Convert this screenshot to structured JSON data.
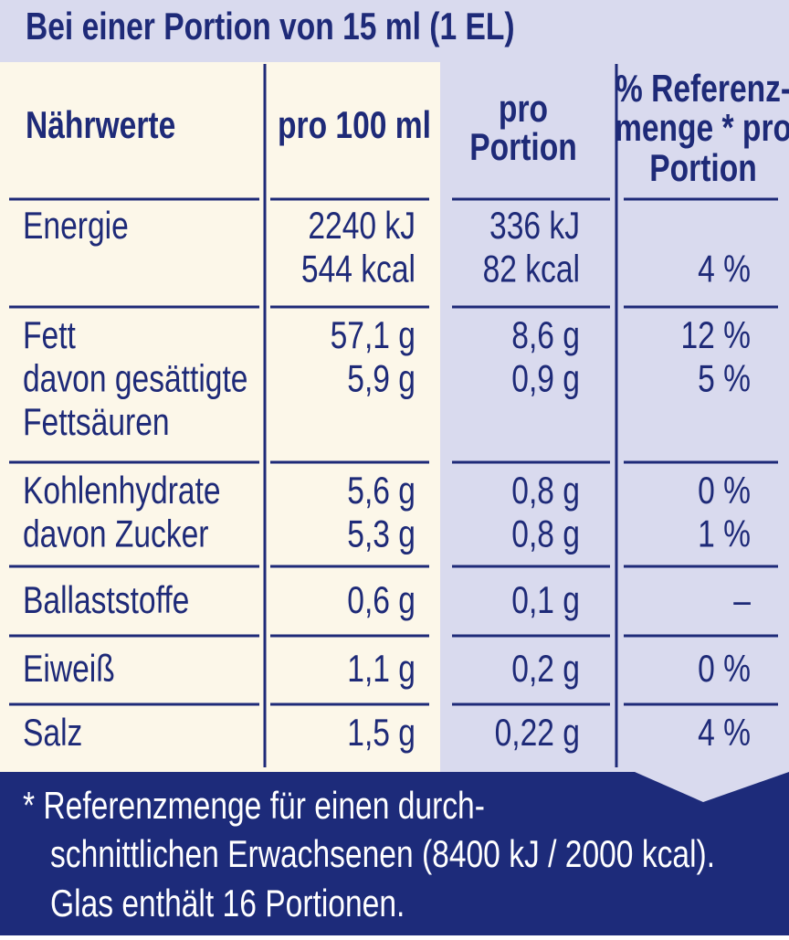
{
  "header": {
    "title": "Bei einer Portion von 15 ml (1 EL)"
  },
  "table": {
    "columns": [
      [
        "Nährwerte"
      ],
      [
        "pro 100 ml"
      ],
      [
        "pro",
        "Portion"
      ],
      [
        "% Referenz-",
        "menge * pro",
        "Portion"
      ]
    ],
    "rows": [
      {
        "cells": [
          [
            "Energie"
          ],
          [
            "2240 kJ",
            "544 kcal"
          ],
          [
            "336 kJ",
            "82 kcal"
          ],
          [
            null,
            "4 %"
          ]
        ]
      },
      {
        "cells": [
          [
            "Fett",
            "davon gesättigte",
            "Fettsäuren"
          ],
          [
            "57,1 g",
            "5,9 g"
          ],
          [
            "8,6 g",
            "0,9 g"
          ],
          [
            "12 %",
            "5 %"
          ]
        ]
      },
      {
        "cells": [
          [
            "Kohlenhydrate",
            "davon Zucker"
          ],
          [
            "5,6 g",
            "5,3 g"
          ],
          [
            "0,8 g",
            "0,8 g"
          ],
          [
            "0 %",
            "1 %"
          ]
        ]
      },
      {
        "cells": [
          [
            "Ballaststoffe"
          ],
          [
            "0,6 g"
          ],
          [
            "0,1 g"
          ],
          [
            "–"
          ]
        ]
      },
      {
        "cells": [
          [
            "Eiweiß"
          ],
          [
            "1,1 g"
          ],
          [
            "0,2 g"
          ],
          [
            "0 %"
          ]
        ]
      },
      {
        "cells": [
          [
            "Salz"
          ],
          [
            "1,5 g"
          ],
          [
            "0,22 g"
          ],
          [
            "4 %"
          ]
        ]
      }
    ]
  },
  "footer": {
    "lines": [
      "* Referenzmenge für einen durch-",
      "schnittlichen Erwachsenen (8400 kJ / 2000 kcal).",
      "Glas enthält 16 Portionen."
    ]
  }
}
